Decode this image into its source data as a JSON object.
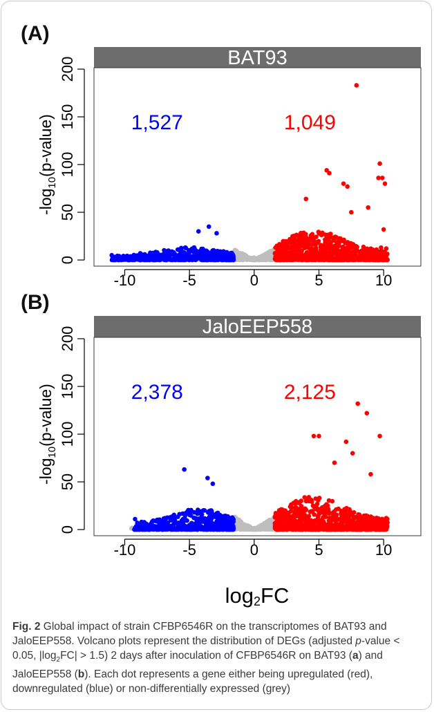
{
  "figure": {
    "x_axis_label_main": "log",
    "x_axis_label_sub": "2",
    "x_axis_label_tail": "FC",
    "caption": {
      "fig_label": "Fig. 2",
      "p1": " Global impact of strain CFBP6546R on the transcriptomes of BAT93 and JaloEEP558. Volcano plots represent the distribution of DEGs (adjusted ",
      "p_italic": "p",
      "p2": "-value < 0.05, |log",
      "p2_sub": "2",
      "p3": "FC| > 1.5) 2 days after inoculation of CFBP6546R on BAT93 (",
      "a": "a",
      "p4": ") and JaloEEP558 (",
      "b": "b",
      "p5": "). Each dot represents a gene either being upregulated (red), downregulated (blue) or non-differentially expressed (grey)"
    }
  },
  "colors": {
    "up": "#ff0000",
    "down": "#0000ff",
    "ns": "#bebebe",
    "strip": "#6d6d6d"
  },
  "chart_data": [
    {
      "type": "scatter",
      "panel_label": "(A)",
      "title": "BAT93",
      "ylabel_main": "-log",
      "ylabel_sub": "10",
      "ylabel_tail": "(p-value)",
      "xlim": [
        -12,
        12.5
      ],
      "ylim": [
        -5,
        200
      ],
      "xticks": [
        -10,
        -5,
        0,
        5,
        10
      ],
      "yticks": [
        0,
        50,
        100,
        150,
        200
      ],
      "down_count": "1,527",
      "up_count": "1,049",
      "series": [
        {
          "name": "downregulated",
          "color_key": "down",
          "x_range": [
            -11,
            -1.6
          ],
          "max_y": 35,
          "spread": 6
        },
        {
          "name": "upregulated",
          "color_key": "up",
          "x_range": [
            1.6,
            10.3
          ],
          "max_y": 60,
          "spread": 14
        },
        {
          "name": "non-differential",
          "color_key": "ns",
          "x_range": [
            -1.6,
            1.6
          ],
          "max_y": 12,
          "spread": 3
        }
      ],
      "highlight_points": [
        {
          "x": -11,
          "y": 5,
          "c": "down"
        },
        {
          "x": -9.5,
          "y": 3,
          "c": "down"
        },
        {
          "x": -8.8,
          "y": 7,
          "c": "down"
        },
        {
          "x": -3.5,
          "y": 35,
          "c": "down"
        },
        {
          "x": -4.3,
          "y": 30,
          "c": "down"
        },
        {
          "x": -2.9,
          "y": 28,
          "c": "down"
        },
        {
          "x": 7.9,
          "y": 183,
          "c": "up"
        },
        {
          "x": 9.7,
          "y": 101,
          "c": "up"
        },
        {
          "x": 5.6,
          "y": 94,
          "c": "up"
        },
        {
          "x": 5.8,
          "y": 91,
          "c": "up"
        },
        {
          "x": 9.6,
          "y": 86,
          "c": "up"
        },
        {
          "x": 9.9,
          "y": 86,
          "c": "up"
        },
        {
          "x": 10.1,
          "y": 80,
          "c": "up"
        },
        {
          "x": 6.9,
          "y": 80,
          "c": "up"
        },
        {
          "x": 7.2,
          "y": 77,
          "c": "up"
        },
        {
          "x": 10.0,
          "y": 32,
          "c": "up"
        },
        {
          "x": 9.8,
          "y": 13,
          "c": "up"
        },
        {
          "x": 10.2,
          "y": 12,
          "c": "up"
        },
        {
          "x": 4.0,
          "y": 64,
          "c": "up"
        },
        {
          "x": 7.5,
          "y": 50,
          "c": "up"
        },
        {
          "x": 8.8,
          "y": 55,
          "c": "up"
        }
      ]
    },
    {
      "type": "scatter",
      "panel_label": "(B)",
      "title": "JaloEEP558",
      "ylabel_main": "-log",
      "ylabel_sub": "10",
      "ylabel_tail": "(p-value)",
      "xlim": [
        -12,
        12.5
      ],
      "ylim": [
        -5,
        200
      ],
      "xticks": [
        -10,
        -5,
        0,
        5,
        10
      ],
      "yticks": [
        0,
        50,
        100,
        150,
        200
      ],
      "down_count": "2,378",
      "up_count": "2,125",
      "series": [
        {
          "name": "downregulated",
          "color_key": "down",
          "x_range": [
            -9.3,
            -1.6
          ],
          "max_y": 55,
          "spread": 10
        },
        {
          "name": "upregulated",
          "color_key": "up",
          "x_range": [
            1.6,
            10.3
          ],
          "max_y": 65,
          "spread": 16
        },
        {
          "name": "non-differential",
          "color_key": "ns",
          "x_range": [
            -1.6,
            1.6
          ],
          "max_y": 14,
          "spread": 3
        }
      ],
      "highlight_points": [
        {
          "x": -9.2,
          "y": 11,
          "c": "down"
        },
        {
          "x": -8.7,
          "y": 8,
          "c": "down"
        },
        {
          "x": -5.4,
          "y": 63,
          "c": "down"
        },
        {
          "x": -3.6,
          "y": 54,
          "c": "down"
        },
        {
          "x": -3.2,
          "y": 48,
          "c": "down"
        },
        {
          "x": 8.0,
          "y": 132,
          "c": "up"
        },
        {
          "x": 8.7,
          "y": 122,
          "c": "up"
        },
        {
          "x": 4.6,
          "y": 98,
          "c": "up"
        },
        {
          "x": 5.0,
          "y": 98,
          "c": "up"
        },
        {
          "x": 9.7,
          "y": 98,
          "c": "up"
        },
        {
          "x": 7.1,
          "y": 92,
          "c": "up"
        },
        {
          "x": 7.6,
          "y": 80,
          "c": "up"
        },
        {
          "x": 6.2,
          "y": 70,
          "c": "up"
        },
        {
          "x": 10.2,
          "y": 12,
          "c": "up"
        },
        {
          "x": 9.0,
          "y": 58,
          "c": "up"
        }
      ]
    }
  ]
}
